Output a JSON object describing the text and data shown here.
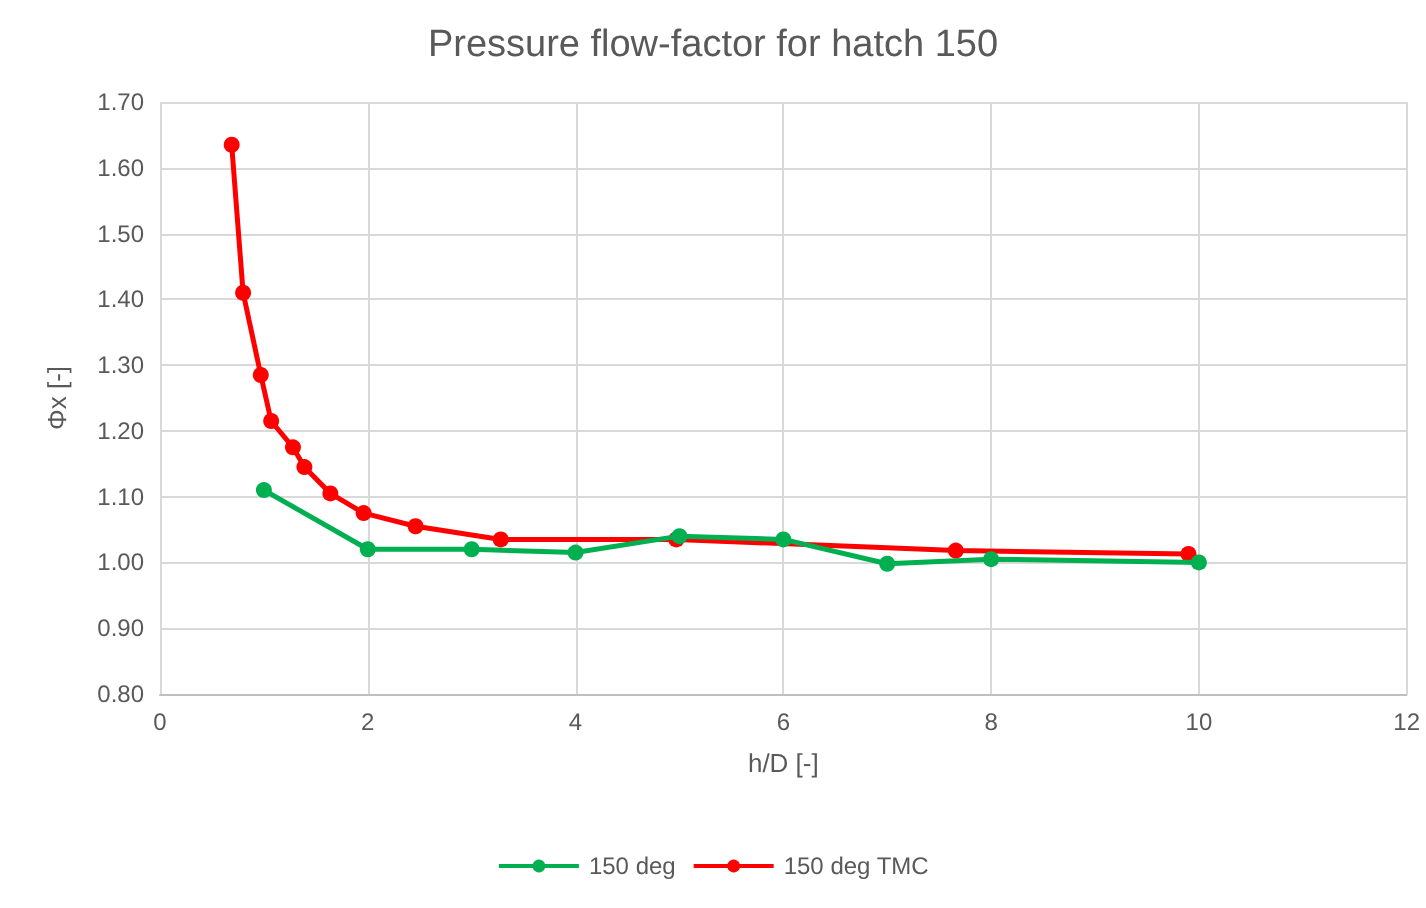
{
  "chart_data": {
    "type": "line",
    "title": "Pressure flow-factor for hatch 150",
    "xlabel": "h/D [-]",
    "ylabel": "Φx [-]",
    "xlim": [
      0,
      12
    ],
    "xticks": [
      0,
      2,
      4,
      6,
      8,
      10,
      12
    ],
    "ylim": [
      0.8,
      1.7
    ],
    "yticks": [
      {
        "value": 0.8,
        "label": "0.80"
      },
      {
        "value": 0.9,
        "label": "0.90"
      },
      {
        "value": 1.0,
        "label": "1.00"
      },
      {
        "value": 1.1,
        "label": "1.10"
      },
      {
        "value": 1.2,
        "label": "1.20"
      },
      {
        "value": 1.3,
        "label": "1.30"
      },
      {
        "value": 1.4,
        "label": "1.40"
      },
      {
        "value": 1.5,
        "label": "1.50"
      },
      {
        "value": 1.6,
        "label": "1.60"
      },
      {
        "value": 1.7,
        "label": "1.70"
      }
    ],
    "grid": true,
    "legend": "bottom",
    "marker": "circle",
    "line_style": "solid",
    "series": [
      {
        "name": "150 deg",
        "color": "#00b050",
        "x": [
          1,
          2,
          3,
          4,
          5,
          6,
          7,
          8,
          10
        ],
        "values": [
          1.11,
          1.02,
          1.02,
          1.015,
          1.04,
          1.035,
          0.998,
          1.005,
          1.0
        ]
      },
      {
        "name": "150 deg TMC",
        "color": "#ff0000",
        "x": [
          0.69,
          0.8,
          0.97,
          1.07,
          1.28,
          1.39,
          1.64,
          1.96,
          2.46,
          3.28,
          4.97,
          7.66,
          9.9
        ],
        "values": [
          1.635,
          1.41,
          1.285,
          1.215,
          1.175,
          1.145,
          1.105,
          1.075,
          1.055,
          1.035,
          1.035,
          1.018,
          1.013
        ]
      }
    ]
  }
}
